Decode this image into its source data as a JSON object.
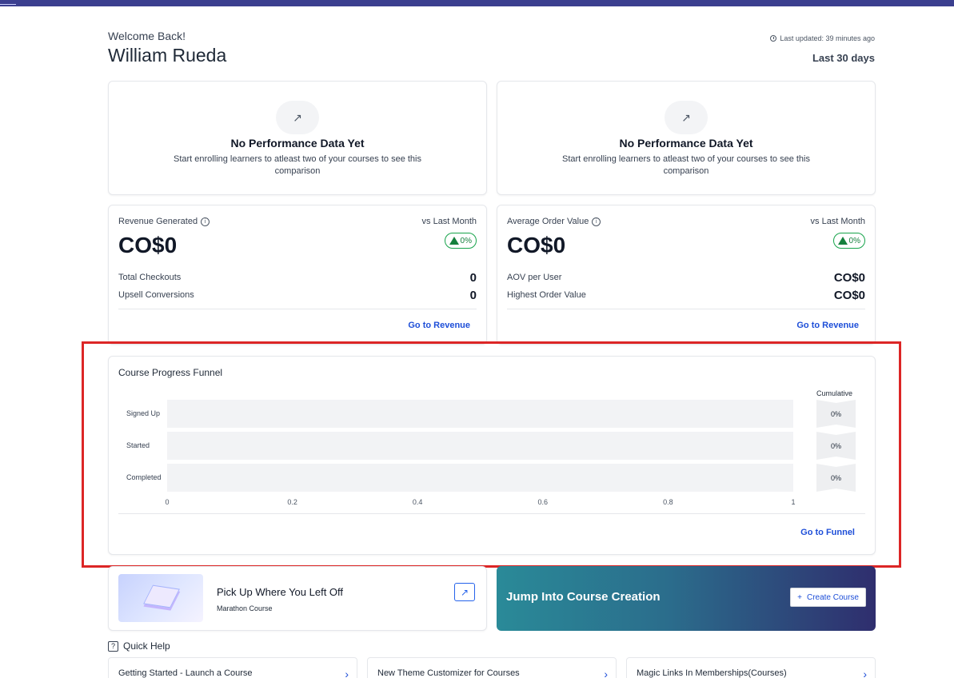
{
  "header": {
    "welcome": "Welcome Back!",
    "user_name": "William Rueda",
    "last_updated": "Last updated: 39 minutes ago",
    "date_range": "Last 30 days"
  },
  "performance_cards": [
    {
      "icon": "trend-up-icon",
      "title": "No Performance Data Yet",
      "description": "Start enrolling learners to atleast two of your courses to see this comparison"
    },
    {
      "icon": "trend-up-icon",
      "title": "No Performance Data Yet",
      "description": "Start enrolling learners to atleast two of your courses to see this comparison"
    }
  ],
  "revenue": {
    "label": "Revenue Generated",
    "compare": "vs Last Month",
    "value": "CO$0",
    "change": "0%",
    "rows": [
      {
        "label": "Total Checkouts",
        "value": "0"
      },
      {
        "label": "Upsell Conversions",
        "value": "0"
      }
    ],
    "link": "Go to Revenue"
  },
  "aov": {
    "label": "Average Order Value",
    "compare": "vs Last Month",
    "value": "CO$0",
    "change": "0%",
    "rows": [
      {
        "label": "AOV per User",
        "value": "CO$0"
      },
      {
        "label": "Highest Order Value",
        "value": "CO$0"
      }
    ],
    "link": "Go to Revenue"
  },
  "chart_data": {
    "type": "bar",
    "orientation": "horizontal",
    "title": "Course Progress Funnel",
    "categories": [
      "Signed Up",
      "Started",
      "Completed"
    ],
    "values": [
      0,
      0,
      0
    ],
    "cumulative_label": "Cumulative",
    "cumulative": [
      "0%",
      "0%",
      "0%"
    ],
    "xticks": [
      "0",
      "0.2",
      "0.4",
      "0.6",
      "0.8",
      "1"
    ],
    "xlim": [
      0,
      1
    ],
    "bar_color": "#4f46e5",
    "link": "Go to Funnel"
  },
  "pickup": {
    "title": "Pick Up Where You Left Off",
    "course": "Marathon Course",
    "icon": "external-link-icon"
  },
  "create": {
    "title": "Jump Into Course Creation",
    "button": "Create Course"
  },
  "quick_help": {
    "label": "Quick Help",
    "items": [
      "Getting Started - Launch a Course",
      "New Theme Customizer for Courses",
      "Magic Links In Memberships(Courses)"
    ]
  }
}
